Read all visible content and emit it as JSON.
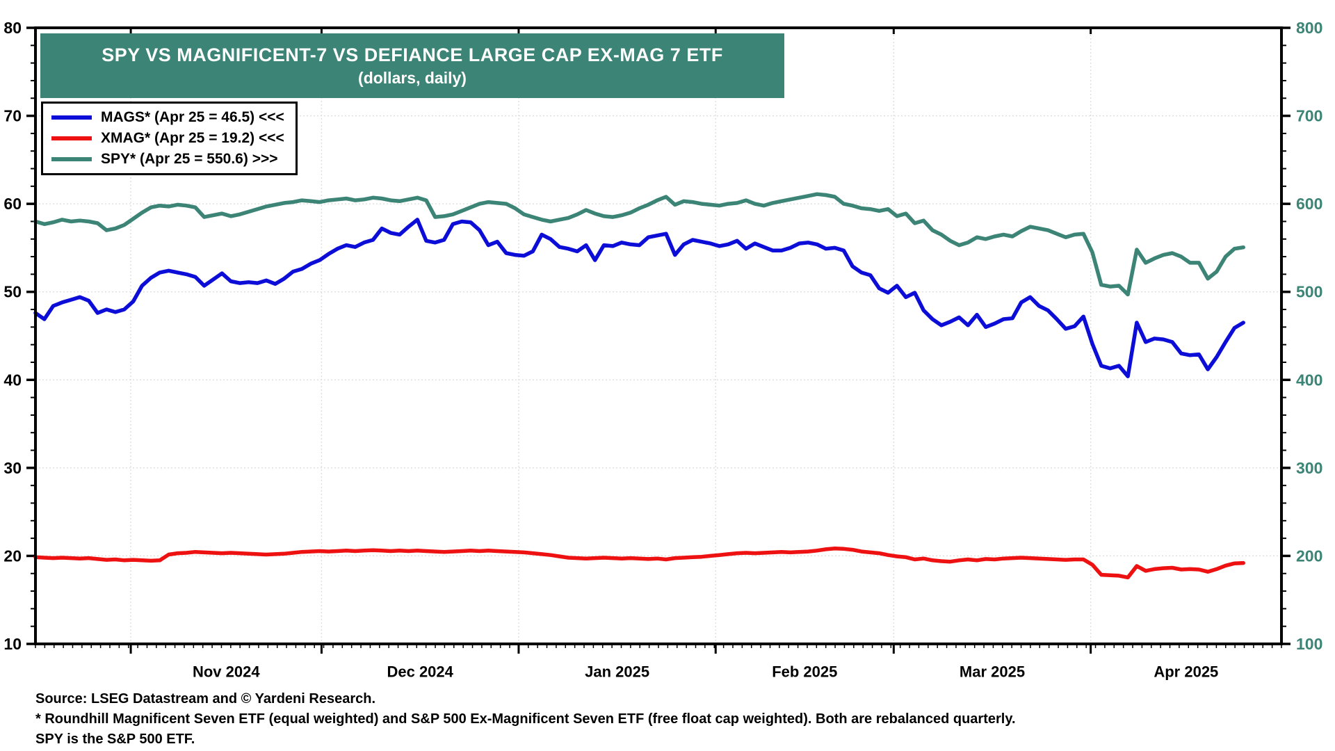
{
  "title": {
    "line1": "SPY VS MAGNIFICENT-7 VS DEFIANCE LARGE CAP EX-MAG 7 ETF",
    "line2": "(dollars, daily)"
  },
  "legend": {
    "items": [
      {
        "label": "MAGS* (Apr 25 = 46.5) <<<",
        "color": "#0D0DD8"
      },
      {
        "label": "XMAG* (Apr 25 = 19.2) <<<",
        "color": "#EE1111"
      },
      {
        "label": "SPY* (Apr 25 = 550.6) >>>",
        "color": "#3C8476"
      }
    ]
  },
  "footnotes": [
    "Source: LSEG Datastream and © Yardeni Research.",
    "* Roundhill Magnificent Seven ETF (equal weighted) and S&P 500 Ex-Magnificent Seven ETF (free float cap weighted). Both are rebalanced quarterly.",
    "SPY is the S&P 500 ETF."
  ],
  "colors": {
    "accent_teal": "#3C8476",
    "mags_blue": "#0D0DD8",
    "xmag_red": "#EE1111",
    "grid": "#DEDEDE",
    "frame": "#000000"
  },
  "chart_data": {
    "type": "line",
    "title": "SPY VS MAGNIFICENT-7 VS DEFIANCE LARGE CAP EX-MAG 7 ETF",
    "subtitle": "(dollars, daily)",
    "grid": "dotted, at major y values and month boundaries",
    "legend_position": "top-left box",
    "x_axis": {
      "tick_labels": [
        "Nov 2024",
        "Dec 2024",
        "Jan 2025",
        "Feb 2025",
        "Mar 2025",
        "Apr 2025"
      ],
      "range_note": "daily from mid-Oct 2024 through Apr 25 2025"
    },
    "left_axis": {
      "range": [
        10,
        80
      ],
      "ticks": [
        80,
        70,
        60,
        50,
        40,
        30,
        20,
        10
      ],
      "color": "#000000"
    },
    "right_axis": {
      "range": [
        100,
        800
      ],
      "ticks": [
        800,
        700,
        600,
        500,
        400,
        300,
        200,
        100
      ],
      "color": "#3C8476"
    },
    "series": [
      {
        "name": "MAGS",
        "axis": "left",
        "color": "#0D0DD8",
        "last_label": "Apr 25 = 46.5",
        "values": [
          47.6,
          46.9,
          48.4,
          48.8,
          49.1,
          49.4,
          49.0,
          47.6,
          48.0,
          47.7,
          48.0,
          48.9,
          50.7,
          51.6,
          52.2,
          52.4,
          52.2,
          52.0,
          51.7,
          50.7,
          51.4,
          52.1,
          51.2,
          51.0,
          51.1,
          51.0,
          51.3,
          50.9,
          51.5,
          52.3,
          52.6,
          53.2,
          53.6,
          54.3,
          54.9,
          55.3,
          55.1,
          55.6,
          55.9,
          57.2,
          56.7,
          56.5,
          57.4,
          58.2,
          55.8,
          55.6,
          55.9,
          57.7,
          58.0,
          57.9,
          57.0,
          55.3,
          55.7,
          54.4,
          54.2,
          54.1,
          54.6,
          56.5,
          56.0,
          55.1,
          54.9,
          54.6,
          55.3,
          53.6,
          55.3,
          55.2,
          55.6,
          55.4,
          55.3,
          56.2,
          56.4,
          56.6,
          54.2,
          55.4,
          55.9,
          55.7,
          55.5,
          55.2,
          55.4,
          55.8,
          54.9,
          55.5,
          55.1,
          54.7,
          54.7,
          55.0,
          55.5,
          55.6,
          55.4,
          54.9,
          55.0,
          54.7,
          52.9,
          52.2,
          51.9,
          50.4,
          49.9,
          50.7,
          49.4,
          49.9,
          47.9,
          46.9,
          46.2,
          46.6,
          47.1,
          46.2,
          47.4,
          46.0,
          46.4,
          46.9,
          47.0,
          48.8,
          49.4,
          48.4,
          47.9,
          46.9,
          45.8,
          46.1,
          47.2,
          44.1,
          41.6,
          41.3,
          41.6,
          40.4,
          46.5,
          44.3,
          44.7,
          44.6,
          44.3,
          43.0,
          42.8,
          42.9,
          41.2,
          42.6,
          44.3,
          45.9,
          46.5
        ]
      },
      {
        "name": "XMAG",
        "axis": "left",
        "color": "#EE1111",
        "last_label": "Apr 25 = 19.2",
        "values": [
          19.85,
          19.8,
          19.75,
          19.8,
          19.75,
          19.7,
          19.75,
          19.65,
          19.55,
          19.6,
          19.5,
          19.55,
          19.5,
          19.45,
          19.5,
          20.15,
          20.3,
          20.35,
          20.45,
          20.4,
          20.35,
          20.3,
          20.35,
          20.3,
          20.25,
          20.2,
          20.15,
          20.2,
          20.25,
          20.35,
          20.45,
          20.5,
          20.55,
          20.5,
          20.55,
          20.6,
          20.55,
          20.6,
          20.65,
          20.6,
          20.55,
          20.6,
          20.55,
          20.6,
          20.55,
          20.5,
          20.45,
          20.5,
          20.55,
          20.6,
          20.55,
          20.6,
          20.55,
          20.5,
          20.45,
          20.4,
          20.3,
          20.2,
          20.1,
          19.95,
          19.8,
          19.75,
          19.7,
          19.75,
          19.8,
          19.75,
          19.7,
          19.75,
          19.7,
          19.65,
          19.7,
          19.6,
          19.75,
          19.8,
          19.85,
          19.9,
          20.0,
          20.1,
          20.2,
          20.3,
          20.35,
          20.3,
          20.35,
          20.4,
          20.45,
          20.4,
          20.45,
          20.5,
          20.6,
          20.75,
          20.85,
          20.8,
          20.7,
          20.5,
          20.4,
          20.3,
          20.1,
          19.95,
          19.85,
          19.6,
          19.7,
          19.5,
          19.4,
          19.35,
          19.5,
          19.6,
          19.5,
          19.65,
          19.6,
          19.7,
          19.75,
          19.8,
          19.75,
          19.7,
          19.65,
          19.6,
          19.55,
          19.6,
          19.6,
          19.0,
          17.85,
          17.8,
          17.75,
          17.55,
          18.85,
          18.3,
          18.5,
          18.6,
          18.65,
          18.45,
          18.5,
          18.45,
          18.2,
          18.5,
          18.9,
          19.15,
          19.2
        ]
      },
      {
        "name": "SPY",
        "axis": "right",
        "color": "#3C8476",
        "last_label": "Apr 25 = 550.6",
        "values": [
          580,
          577,
          579,
          582,
          580,
          581,
          580,
          578,
          570,
          572,
          576,
          583,
          590,
          596,
          598,
          597,
          599,
          598,
          596,
          585,
          587,
          589,
          586,
          588,
          591,
          594,
          597,
          599,
          601,
          602,
          604,
          603,
          602,
          604,
          605,
          606,
          604,
          605,
          607,
          606,
          604,
          603,
          605,
          607,
          604,
          585,
          586,
          588,
          592,
          596,
          600,
          602,
          601,
          600,
          595,
          588,
          585,
          582,
          580,
          582,
          584,
          588,
          593,
          589,
          586,
          585,
          587,
          590,
          595,
          599,
          604,
          608,
          599,
          603,
          602,
          600,
          599,
          598,
          600,
          601,
          604,
          600,
          598,
          601,
          603,
          605,
          607,
          609,
          611,
          610,
          608,
          600,
          598,
          595,
          594,
          592,
          594,
          586,
          589,
          578,
          581,
          570,
          565,
          558,
          553,
          556,
          562,
          560,
          563,
          565,
          563,
          569,
          574,
          572,
          570,
          566,
          562,
          565,
          566,
          545,
          508,
          506,
          507,
          497,
          548,
          533,
          538,
          542,
          544,
          540,
          533,
          533,
          515,
          523,
          540,
          549,
          550.6
        ]
      }
    ]
  }
}
